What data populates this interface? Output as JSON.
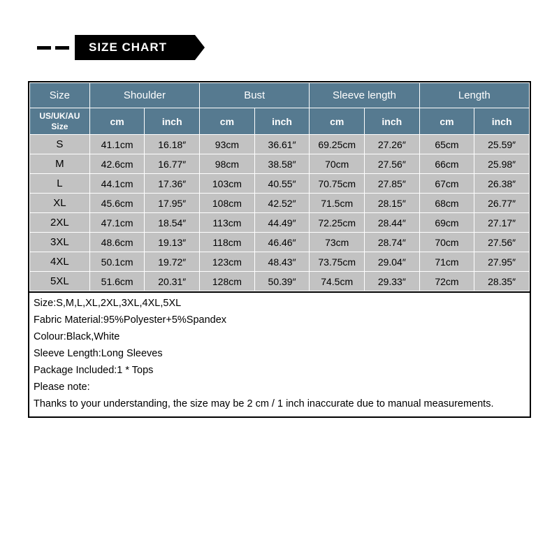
{
  "banner": {
    "title": "SIZE CHART"
  },
  "table": {
    "header": {
      "size_label": "Size",
      "region_label": "US/UK/AU\nSize",
      "groups": [
        "Shoulder",
        "Bust",
        "Sleeve length",
        "Length"
      ],
      "sub_cm": "cm",
      "sub_inch": "inch"
    },
    "rows": [
      {
        "size": "S",
        "vals": [
          "41.1cm",
          "16.18″",
          "93cm",
          "36.61″",
          "69.25cm",
          "27.26″",
          "65cm",
          "25.59″"
        ]
      },
      {
        "size": "M",
        "vals": [
          "42.6cm",
          "16.77″",
          "98cm",
          "38.58″",
          "70cm",
          "27.56″",
          "66cm",
          "25.98″"
        ]
      },
      {
        "size": "L",
        "vals": [
          "44.1cm",
          "17.36″",
          "103cm",
          "40.55″",
          "70.75cm",
          "27.85″",
          "67cm",
          "26.38″"
        ]
      },
      {
        "size": "XL",
        "vals": [
          "45.6cm",
          "17.95″",
          "108cm",
          "42.52″",
          "71.5cm",
          "28.15″",
          "68cm",
          "26.77″"
        ]
      },
      {
        "size": "2XL",
        "vals": [
          "47.1cm",
          "18.54″",
          "113cm",
          "44.49″",
          "72.25cm",
          "28.44″",
          "69cm",
          "27.17″"
        ]
      },
      {
        "size": "3XL",
        "vals": [
          "48.6cm",
          "19.13″",
          "118cm",
          "46.46″",
          "73cm",
          "28.74″",
          "70cm",
          "27.56″"
        ]
      },
      {
        "size": "4XL",
        "vals": [
          "50.1cm",
          "19.72″",
          "123cm",
          "48.43″",
          "73.75cm",
          "29.04″",
          "71cm",
          "27.95″"
        ]
      },
      {
        "size": "5XL",
        "vals": [
          "51.6cm",
          "20.31″",
          "128cm",
          "50.39″",
          "74.5cm",
          "29.33″",
          "72cm",
          "28.35″"
        ]
      }
    ]
  },
  "notes": [
    "Size:S,M,L,XL,2XL,3XL,4XL,5XL",
    "Fabric Material:95%Polyester+5%Spandex",
    "Colour:Black,White",
    "Sleeve Length:Long Sleeves",
    "Package Included:1 * Tops",
    "Please note:",
    "Thanks to your understanding, the size may be 2 cm / 1 inch inaccurate due to manual measurements."
  ],
  "style": {
    "header_bg": "#567a90",
    "cell_bg": "#c2c2c2",
    "border_color": "#ffffff",
    "outer_border": "#000000",
    "header_text": "#ffffff",
    "cell_text": "#000000"
  }
}
